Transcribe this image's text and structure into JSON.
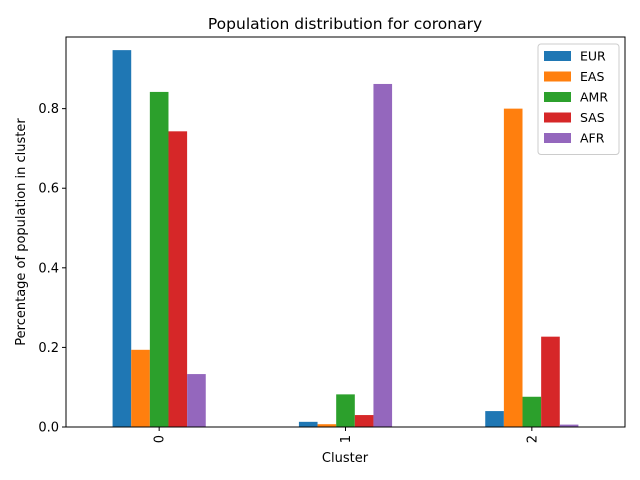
{
  "chart_data": {
    "type": "bar",
    "title": "Population distribution for coronary",
    "xlabel": "Cluster",
    "ylabel": "Percentage of population in cluster",
    "categories": [
      "0",
      "1",
      "2"
    ],
    "ylim": [
      0,
      0.98
    ],
    "yticks": [
      "0.0",
      "0.2",
      "0.4",
      "0.6",
      "0.8"
    ],
    "ytick_values": [
      0,
      0.2,
      0.4,
      0.6,
      0.8
    ],
    "legend_position": "top-right",
    "grid": false,
    "series": [
      {
        "name": "EUR",
        "color": "#1f77b4",
        "values": [
          0.947,
          0.013,
          0.04
        ]
      },
      {
        "name": "EAS",
        "color": "#ff7f0e",
        "values": [
          0.194,
          0.007,
          0.8
        ]
      },
      {
        "name": "AMR",
        "color": "#2ca02c",
        "values": [
          0.842,
          0.082,
          0.076
        ]
      },
      {
        "name": "SAS",
        "color": "#d62728",
        "values": [
          0.743,
          0.03,
          0.227
        ]
      },
      {
        "name": "AFR",
        "color": "#9467bd",
        "values": [
          0.133,
          0.862,
          0.006
        ]
      }
    ]
  }
}
